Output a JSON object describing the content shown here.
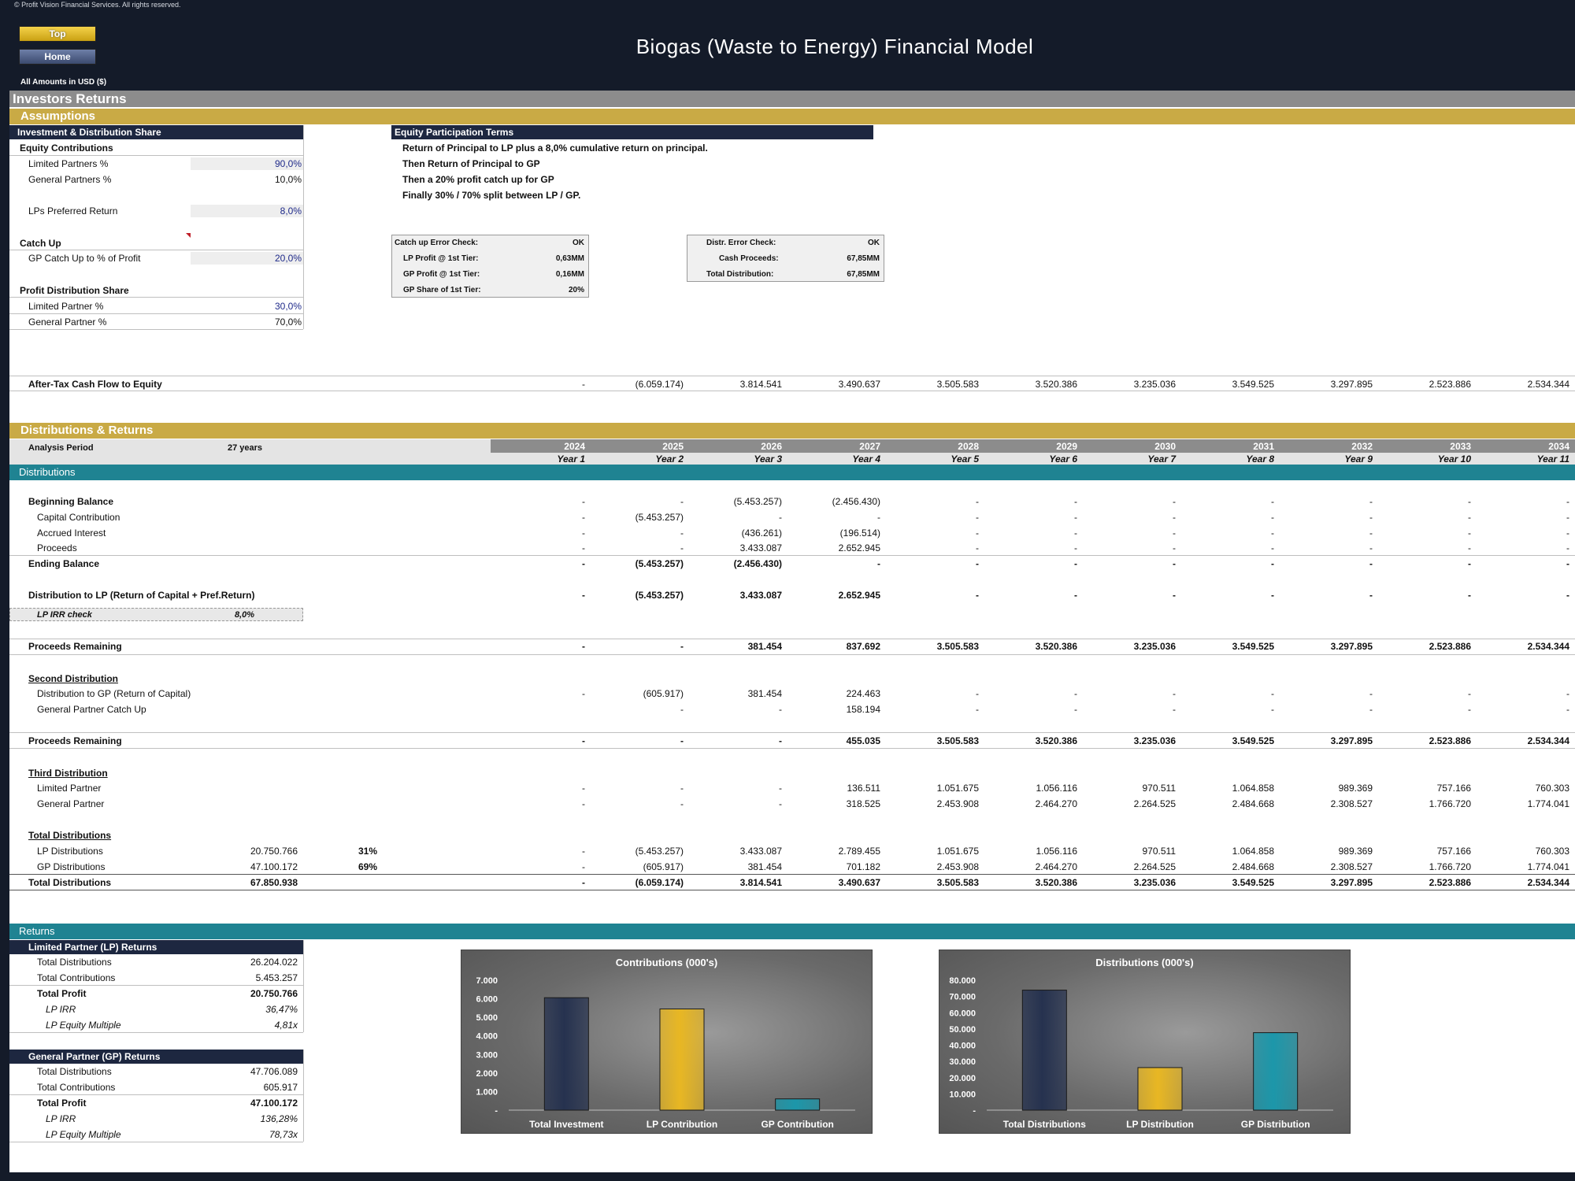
{
  "header": {
    "copyright": "© Profit Vision Financial Services. All rights reserved.",
    "top_button": "Top",
    "home_button": "Home",
    "title": "Biogas (Waste to Energy) Financial Model",
    "currency": "All Amounts in  USD ($)"
  },
  "sections": {
    "investors_returns": "Investors Returns",
    "assumptions": "Assumptions",
    "distributions_returns": "Distributions & Returns",
    "distributions": "Distributions",
    "returns": "Returns"
  },
  "investment_share": {
    "header": "Investment & Distribution Share",
    "equity_contributions": "Equity Contributions",
    "lp_pct_label": "Limited Partners %",
    "lp_pct": "90,0%",
    "gp_pct_label": "General Partners %",
    "gp_pct": "10,0%",
    "pref_label": "LPs Preferred Return",
    "pref": "8,0%",
    "catch_up": "Catch Up",
    "catch_up_label": "GP Catch Up to % of Profit",
    "catch_up_val": "20,0%",
    "profit_share": "Profit Distribution Share",
    "lp_share_label": "Limited Partner %",
    "lp_share": "30,0%",
    "gp_share_label": "General Partner %",
    "gp_share": "70,0%"
  },
  "equity_terms": {
    "header": "Equity Participation Terms",
    "lines": [
      "Return of Principal to LP plus a 8,0% cumulative return on principal.",
      "Then Return of Principal to GP",
      "Then a 20% profit catch up for GP",
      "Finally 30% / 70% split between LP / GP."
    ]
  },
  "check_box_1": {
    "rows": [
      {
        "label": "Catch up Error Check:",
        "value": "OK"
      },
      {
        "label": "LP Profit @ 1st Tier:",
        "value": "0,63MM"
      },
      {
        "label": "GP Profit @ 1st Tier:",
        "value": "0,16MM"
      },
      {
        "label": "GP Share of 1st Tier:",
        "value": "20%"
      }
    ]
  },
  "check_box_2": {
    "rows": [
      {
        "label": "Distr. Error Check:",
        "value": "OK"
      },
      {
        "label": "Cash Proceeds:",
        "value": "67,85MM"
      },
      {
        "label": "Total Distribution:",
        "value": "67,85MM"
      }
    ]
  },
  "cashflow": {
    "label": "After-Tax Cash Flow to Equity",
    "values": [
      "-",
      "(6.059.174)",
      "3.814.541",
      "3.490.637",
      "3.505.583",
      "3.520.386",
      "3.235.036",
      "3.549.525",
      "3.297.895",
      "2.523.886",
      "2.534.344"
    ]
  },
  "period": {
    "label": "Analysis Period",
    "value": "27 years",
    "years": [
      "2024",
      "2025",
      "2026",
      "2027",
      "2028",
      "2029",
      "2030",
      "2031",
      "2032",
      "2033",
      "2034"
    ],
    "year_labels": [
      "Year 1",
      "Year 2",
      "Year 3",
      "Year 4",
      "Year 5",
      "Year 6",
      "Year 7",
      "Year 8",
      "Year 9",
      "Year 10",
      "Year 11"
    ]
  },
  "distribution_rows": {
    "beginning_balance": {
      "label": "Beginning Balance",
      "values": [
        "-",
        "-",
        "(5.453.257)",
        "(2.456.430)",
        "-",
        "-",
        "-",
        "-",
        "-",
        "-",
        "-"
      ]
    },
    "capital_contribution": {
      "label": "Capital Contribution",
      "values": [
        "-",
        "(5.453.257)",
        "-",
        "-",
        "-",
        "-",
        "-",
        "-",
        "-",
        "-",
        "-"
      ]
    },
    "accrued_interest": {
      "label": "Accrued Interest",
      "values": [
        "-",
        "-",
        "(436.261)",
        "(196.514)",
        "-",
        "-",
        "-",
        "-",
        "-",
        "-",
        "-"
      ]
    },
    "proceeds": {
      "label": "Proceeds",
      "values": [
        "-",
        "-",
        "3.433.087",
        "2.652.945",
        "-",
        "-",
        "-",
        "-",
        "-",
        "-",
        "-"
      ]
    },
    "ending_balance": {
      "label": "Ending Balance",
      "values": [
        "-",
        "(5.453.257)",
        "(2.456.430)",
        "-",
        "-",
        "-",
        "-",
        "-",
        "-",
        "-",
        "-"
      ]
    },
    "dist_to_lp": {
      "label": "Distribution to LP (Return of Capital + Pref.Return)",
      "values": [
        "-",
        "(5.453.257)",
        "3.433.087",
        "2.652.945",
        "-",
        "-",
        "-",
        "-",
        "-",
        "-",
        "-"
      ]
    },
    "lp_irr_check_label": "LP IRR check",
    "lp_irr_check": "8,0%",
    "proceeds_remaining_1": {
      "label": "Proceeds Remaining",
      "values": [
        "-",
        "-",
        "381.454",
        "837.692",
        "3.505.583",
        "3.520.386",
        "3.235.036",
        "3.549.525",
        "3.297.895",
        "2.523.886",
        "2.534.344"
      ]
    },
    "second_distribution": "Second Distribution",
    "dist_to_gp": {
      "label": "Distribution to GP (Return of Capital)",
      "values": [
        "-",
        "(605.917)",
        "381.454",
        "224.463",
        "-",
        "-",
        "-",
        "-",
        "-",
        "-",
        "-"
      ]
    },
    "gp_catch_up": {
      "label": "General Partner Catch Up",
      "values": [
        "",
        "-",
        "-",
        "158.194",
        "-",
        "-",
        "-",
        "-",
        "-",
        "-",
        "-"
      ]
    },
    "proceeds_remaining_2": {
      "label": "Proceeds Remaining",
      "values": [
        "-",
        "-",
        "-",
        "455.035",
        "3.505.583",
        "3.520.386",
        "3.235.036",
        "3.549.525",
        "3.297.895",
        "2.523.886",
        "2.534.344"
      ]
    },
    "third_distribution": "Third Distribution",
    "limited_partner": {
      "label": "Limited Partner",
      "values": [
        "-",
        "-",
        "-",
        "136.511",
        "1.051.675",
        "1.056.116",
        "970.511",
        "1.064.858",
        "989.369",
        "757.166",
        "760.303"
      ]
    },
    "general_partner": {
      "label": "General Partner",
      "values": [
        "-",
        "-",
        "-",
        "318.525",
        "2.453.908",
        "2.464.270",
        "2.264.525",
        "2.484.668",
        "2.308.527",
        "1.766.720",
        "1.774.041"
      ]
    },
    "total_distributions_hdr": "Total Distributions",
    "lp_distributions": {
      "label": "LP Distributions",
      "total": "20.750.766",
      "pct": "31%",
      "values": [
        "-",
        "(5.453.257)",
        "3.433.087",
        "2.789.455",
        "1.051.675",
        "1.056.116",
        "970.511",
        "1.064.858",
        "989.369",
        "757.166",
        "760.303"
      ]
    },
    "gp_distributions": {
      "label": "GP Distributions",
      "total": "47.100.172",
      "pct": "69%",
      "values": [
        "-",
        "(605.917)",
        "381.454",
        "701.182",
        "2.453.908",
        "2.464.270",
        "2.264.525",
        "2.484.668",
        "2.308.527",
        "1.766.720",
        "1.774.041"
      ]
    },
    "total_distributions": {
      "label": "Total Distributions",
      "total": "67.850.938",
      "values": [
        "-",
        "(6.059.174)",
        "3.814.541",
        "3.490.637",
        "3.505.583",
        "3.520.386",
        "3.235.036",
        "3.549.525",
        "3.297.895",
        "2.523.886",
        "2.534.344"
      ]
    }
  },
  "lp_returns": {
    "header": "Limited Partner (LP) Returns",
    "rows": [
      {
        "label": "Total Distributions",
        "value": "26.204.022"
      },
      {
        "label": "Total Contributions",
        "value": "5.453.257"
      },
      {
        "label": "Total Profit",
        "value": "20.750.766"
      },
      {
        "label": "LP IRR",
        "value": "36,47%"
      },
      {
        "label": "LP Equity Multiple",
        "value": "4,81x"
      }
    ]
  },
  "gp_returns": {
    "header": "General Partner (GP) Returns",
    "rows": [
      {
        "label": "Total Distributions",
        "value": "47.706.089"
      },
      {
        "label": "Total Contributions",
        "value": "605.917"
      },
      {
        "label": "Total Profit",
        "value": "47.100.172"
      },
      {
        "label": "LP IRR",
        "value": "136,28%"
      },
      {
        "label": "LP Equity Multiple",
        "value": "78,73x"
      }
    ]
  },
  "chart_data": [
    {
      "type": "bar",
      "title": "Contributions (000's)",
      "categories": [
        "Total Investment",
        "LP Contribution",
        "GP Contribution"
      ],
      "values": [
        6059,
        5453,
        606
      ],
      "ylim": [
        0,
        7000
      ],
      "yticks": [
        "-",
        "1.000",
        "2.000",
        "3.000",
        "4.000",
        "5.000",
        "6.000",
        "7.000"
      ],
      "colors": [
        "#26324f",
        "#e8b723",
        "#1c97aa"
      ]
    },
    {
      "type": "bar",
      "title": "Distributions (000's)",
      "categories": [
        "Total Distributions",
        "LP Distribution",
        "GP Distribution"
      ],
      "values": [
        73910,
        26204,
        47706
      ],
      "ylim": [
        0,
        80000
      ],
      "yticks": [
        "-",
        "10.000",
        "20.000",
        "30.000",
        "40.000",
        "50.000",
        "60.000",
        "70.000",
        "80.000"
      ],
      "colors": [
        "#26324f",
        "#e8b723",
        "#1c97aa"
      ]
    }
  ]
}
